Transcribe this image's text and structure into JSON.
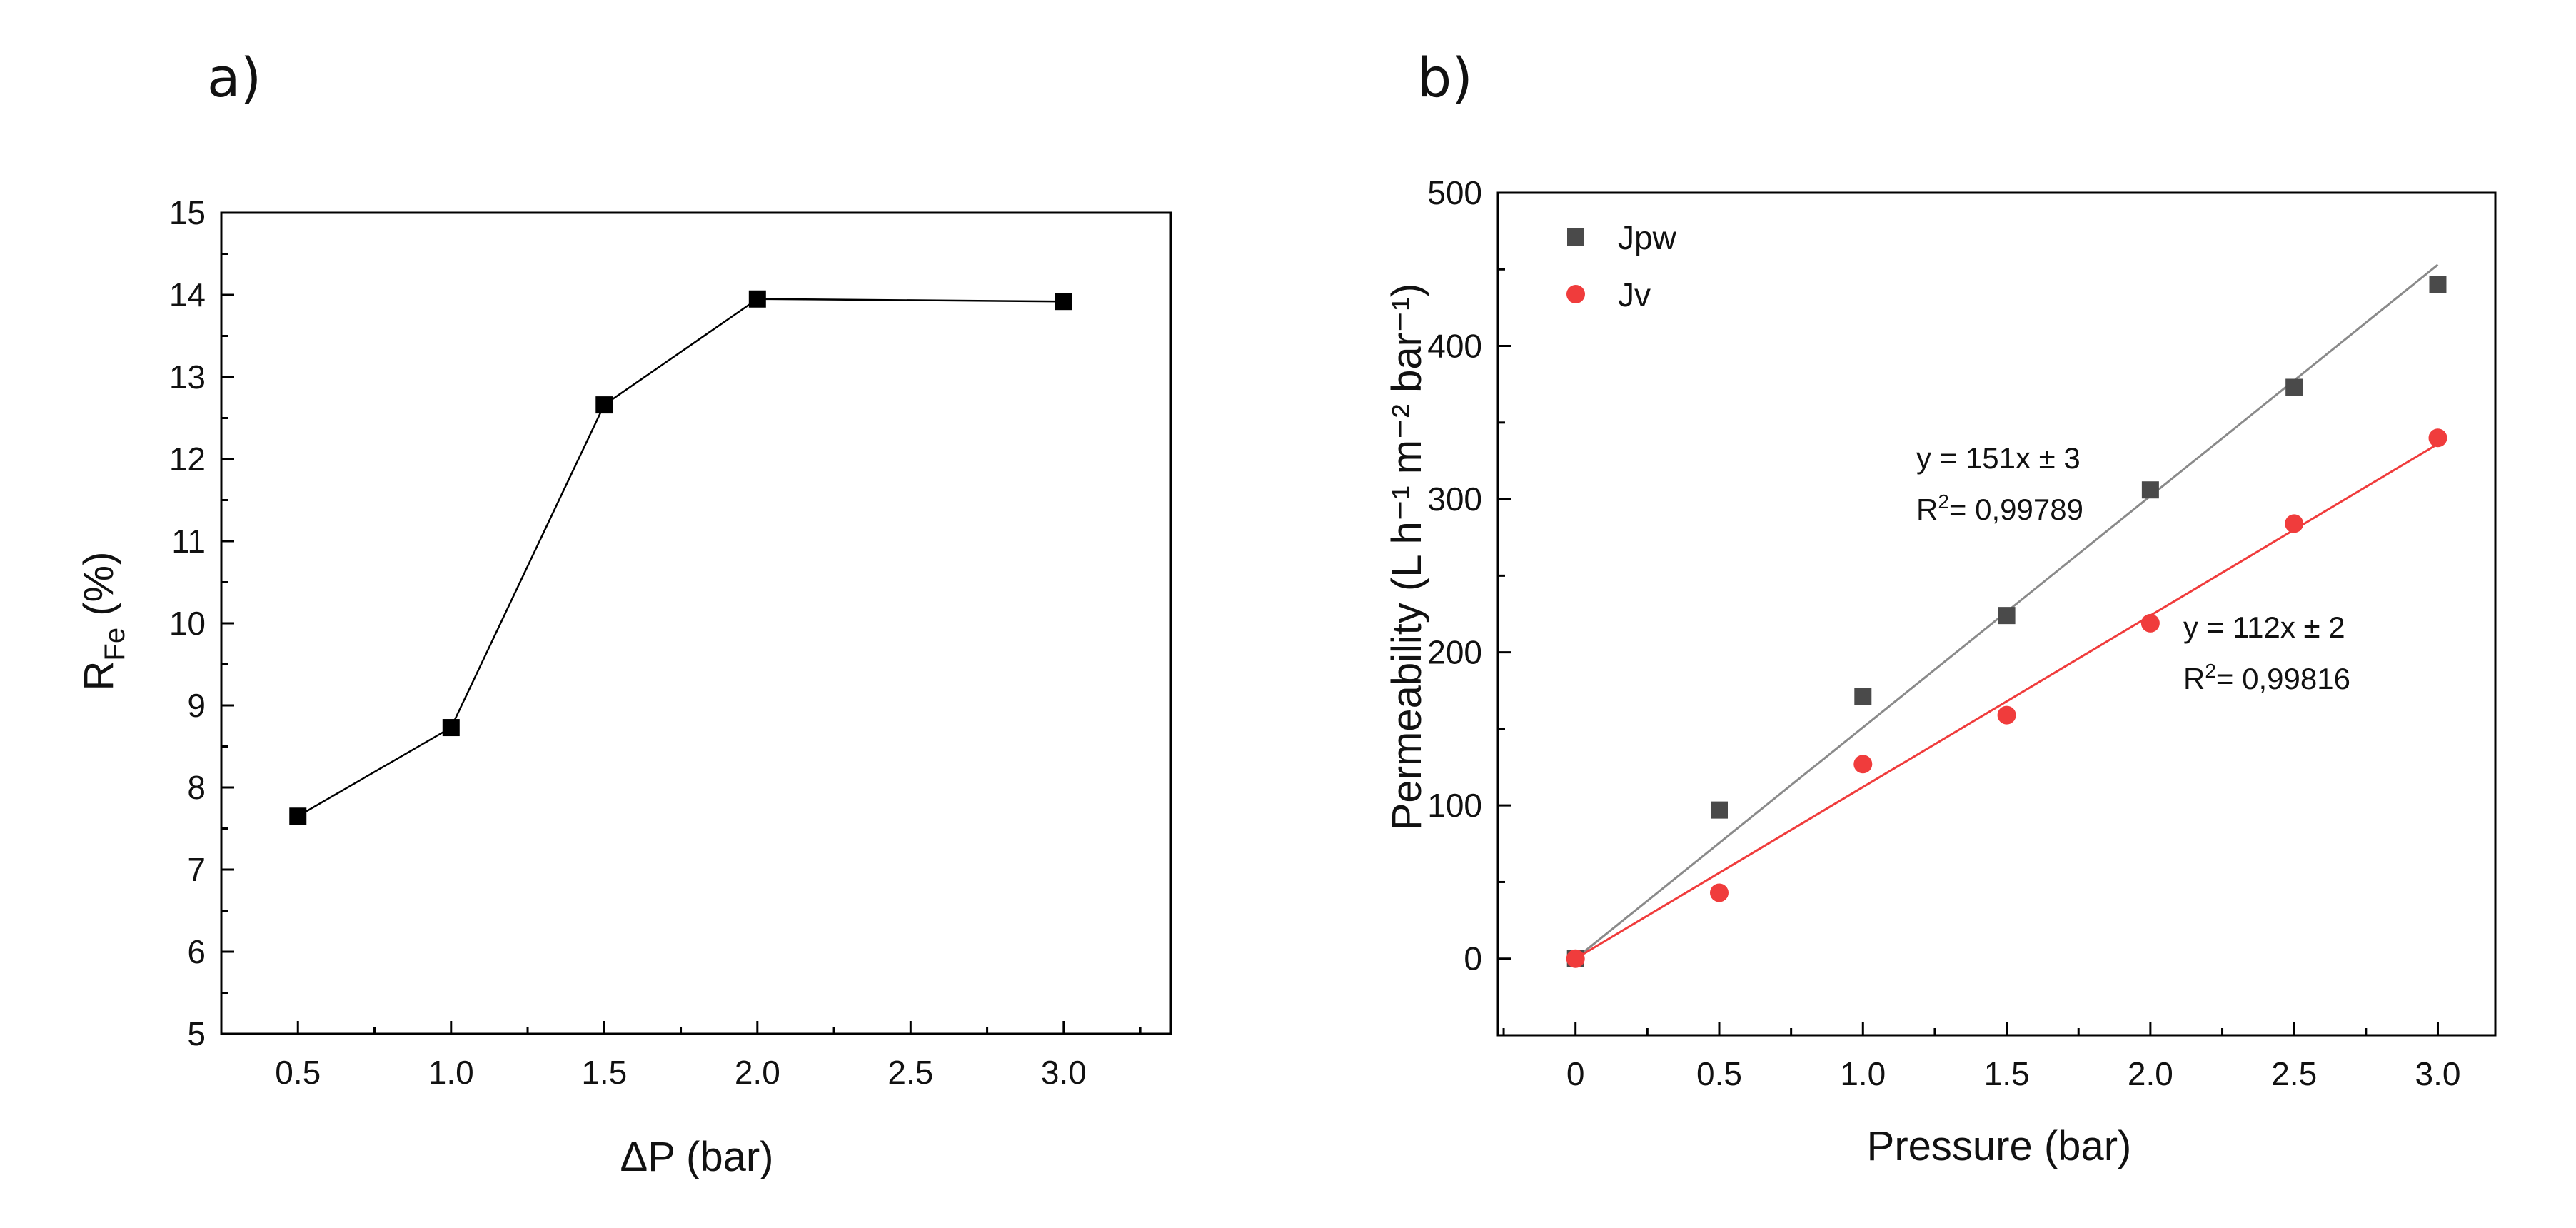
{
  "panel_labels": {
    "a": "a)",
    "b": "b)"
  },
  "chart_data": [
    {
      "type": "line",
      "title": "",
      "xlabel": "ΔP (bar)",
      "ylabel_main": "R",
      "ylabel_sub": "Fe",
      "ylabel_rest": " (%)",
      "xlim": [
        0.25,
        3.35
      ],
      "ylim": [
        5,
        15
      ],
      "xticks": [
        0.5,
        1.0,
        1.5,
        2.0,
        2.5,
        3.0
      ],
      "xtick_labels": [
        "0.5",
        "1.0",
        "1.5",
        "2.0",
        "2.5",
        "3.0"
      ],
      "yticks": [
        5,
        6,
        7,
        8,
        9,
        10,
        11,
        12,
        13,
        14,
        15
      ],
      "ytick_labels": [
        "5",
        "6",
        "7",
        "8",
        "9",
        "10",
        "11",
        "12",
        "13",
        "14",
        "15"
      ],
      "grid": false,
      "series": [
        {
          "name": "R_Fe",
          "x": [
            0.5,
            1.0,
            1.5,
            2.0,
            3.0
          ],
          "values": [
            7.65,
            8.73,
            12.66,
            13.95,
            13.92
          ],
          "color": "#000000",
          "marker": "square"
        }
      ]
    },
    {
      "type": "scatter",
      "title": "",
      "xlabel": "Pressure (bar)",
      "ylabel": "Permeability (L h⁻¹ m⁻² bar⁻¹)",
      "xlim": [
        -0.27,
        3.2
      ],
      "ylim": [
        -50,
        500
      ],
      "xticks": [
        0,
        0.5,
        1.0,
        1.5,
        2.0,
        2.5,
        3.0
      ],
      "xtick_labels": [
        "0",
        "0.5",
        "1.0",
        "1.5",
        "2.0",
        "2.5",
        "3.0"
      ],
      "yticks": [
        0,
        100,
        200,
        300,
        400,
        500
      ],
      "ytick_labels": [
        "0",
        "100",
        "200",
        "300",
        "400",
        "500"
      ],
      "grid": false,
      "legend_position": "top-left",
      "series": [
        {
          "name": "Jpw",
          "x": [
            0,
            0.5,
            1.0,
            1.5,
            2.0,
            2.5,
            3.0
          ],
          "values": [
            0,
            97,
            171,
            224,
            306,
            373,
            440
          ],
          "color": "#4a4a4a",
          "marker": "square",
          "fit": {
            "slope": 151,
            "intercept": 0,
            "equation": "y = 151x ± 3",
            "r2_prefix": "R",
            "r2_sup": "2",
            "r2_value": "= 0,99789",
            "line_color": "#8a8a8a"
          }
        },
        {
          "name": "Jv",
          "x": [
            0,
            0.5,
            1.0,
            1.5,
            2.0,
            2.5,
            3.0
          ],
          "values": [
            0,
            43,
            127,
            159,
            219,
            284,
            340
          ],
          "color": "#f03c3c",
          "marker": "circle",
          "fit": {
            "slope": 112,
            "intercept": 0,
            "equation": "y = 112x ± 2",
            "r2_prefix": "R",
            "r2_sup": "2",
            "r2_value": "= 0,99816",
            "line_color": "#f03c3c"
          }
        }
      ]
    }
  ]
}
